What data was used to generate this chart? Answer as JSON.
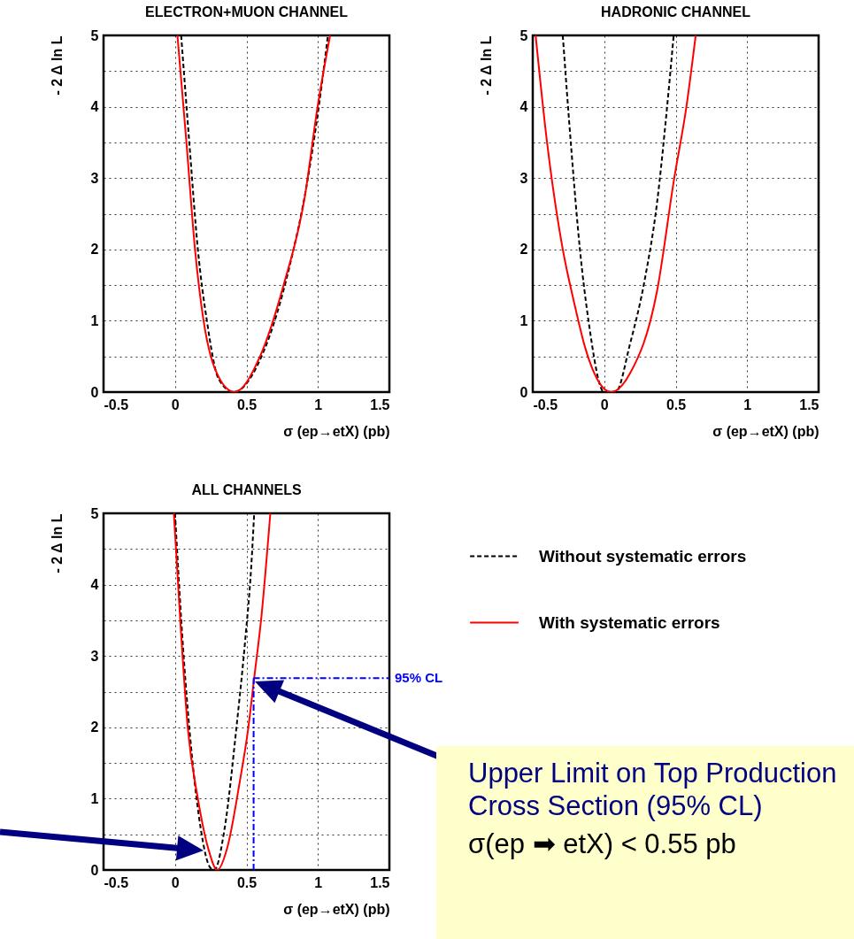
{
  "chart_data": [
    {
      "type": "line",
      "title": "ELECTRON+MUON CHANNEL",
      "xlabel": "σ (ep→etX)  (pb)",
      "ylabel": "- 2 Δ ln L",
      "xlim": [
        -0.5,
        1.5
      ],
      "ylim": [
        0,
        5
      ],
      "xticks": [
        -0.5,
        0,
        0.5,
        1,
        1.5
      ],
      "yticks": [
        0,
        {
          "value": 0.5,
          "label": null
        },
        1,
        {
          "value": 1.5,
          "label": null
        },
        2,
        {
          "value": 2.5,
          "label": null
        },
        3,
        {
          "value": 3.5,
          "label": null
        },
        4,
        {
          "value": 4.5,
          "label": null
        },
        5
      ],
      "grid": true,
      "series": [
        {
          "color": "#000000",
          "line_style": "dashed",
          "x": [
            0.043,
            0.1,
            0.16,
            0.223,
            0.306,
            0.41,
            0.616,
            0.8,
            0.93,
            1.008,
            1.07
          ],
          "values": [
            5,
            3.5,
            2,
            1,
            0.18,
            0,
            0.55,
            1.75,
            3,
            4.03,
            5
          ]
        },
        {
          "color": "#ff0000",
          "line_style": "solid",
          "x": [
            0.017,
            0.08,
            0.14,
            0.2,
            0.285,
            0.415,
            0.595,
            0.76,
            0.905,
            1.0,
            1.085
          ],
          "values": [
            5,
            3.5,
            2,
            1,
            0.3,
            0,
            0.5,
            1.5,
            2.7,
            4.03,
            5
          ]
        }
      ]
    },
    {
      "type": "line",
      "title": "HADRONIC CHANNEL",
      "xlabel": "σ (ep→etX)  (pb)",
      "ylabel": "- 2 Δ ln L",
      "xlim": [
        -0.5,
        1.5
      ],
      "ylim": [
        0,
        5
      ],
      "xticks": [
        -0.5,
        0,
        0.5,
        1,
        1.5
      ],
      "yticks": [
        0,
        {
          "value": 0.5,
          "label": null
        },
        1,
        {
          "value": 1.5,
          "label": null
        },
        2,
        {
          "value": 2.5,
          "label": null
        },
        3,
        {
          "value": 3.5,
          "label": null
        },
        4,
        {
          "value": 4.5,
          "label": null
        },
        5
      ],
      "grid": true,
      "series": [
        {
          "color": "#000000",
          "line_style": "dashed",
          "x": [
            -0.29,
            -0.23,
            -0.17,
            -0.11,
            0,
            0.08,
            0.18,
            0.285,
            0.37,
            0.44,
            0.486
          ],
          "values": [
            5,
            3.4,
            2,
            1,
            0,
            0,
            0.67,
            1.59,
            2.66,
            4,
            5
          ]
        },
        {
          "color": "#ff0000",
          "line_style": "solid",
          "x": [
            -0.48,
            -0.4,
            -0.29,
            -0.21,
            -0.13,
            0.048,
            0.18,
            0.37,
            0.49,
            0.575,
            0.64
          ],
          "values": [
            5,
            3.5,
            2,
            1.25,
            0.6,
            0,
            0.26,
            1.42,
            3,
            4,
            5
          ]
        }
      ]
    },
    {
      "type": "line",
      "title": "ALL CHANNELS",
      "xlabel": "σ (ep→etX)  (pb)",
      "ylabel": "- 2 Δ ln L",
      "xlim": [
        -0.5,
        1.5
      ],
      "ylim": [
        0,
        5
      ],
      "xticks": [
        -0.5,
        0,
        0.5,
        1,
        1.5
      ],
      "yticks": [
        0,
        {
          "value": 0.5,
          "label": null
        },
        1,
        {
          "value": 1.5,
          "label": null
        },
        2,
        {
          "value": 2.5,
          "label": null
        },
        3,
        {
          "value": 3.5,
          "label": null
        },
        4,
        {
          "value": 4.5,
          "label": null
        },
        5
      ],
      "grid": true,
      "legend": "right",
      "series": [
        {
          "name": "Without systematic errors",
          "color": "#000000",
          "line_style": "dashed",
          "x": [
            0,
            0.058,
            0.12,
            0.18,
            0.244,
            0.275,
            0.347,
            0.43,
            0.492,
            0.533,
            0.554
          ],
          "values": [
            5,
            3.07,
            1.57,
            0.58,
            0.04,
            0,
            0.58,
            2,
            3.24,
            4.24,
            5
          ]
        },
        {
          "name": "With systematic errors",
          "color": "#ff0000",
          "line_style": "solid",
          "x": [
            -0.008,
            0.037,
            0.089,
            0.16,
            0.234,
            0.295,
            0.368,
            0.45,
            0.512,
            0.554,
            0.605,
            0.667
          ],
          "values": [
            5,
            3.49,
            2,
            1,
            0.29,
            0,
            0.33,
            1.2,
            1.98,
            2.69,
            3.56,
            5
          ]
        }
      ],
      "ref_lines": [
        {
          "axis": "y",
          "value": 2.69,
          "label": "95% CL",
          "color": "#0000ff",
          "line_style": "dashdot"
        },
        {
          "axis": "x",
          "value": 0.55,
          "color": "#0000ff",
          "line_style": "dashdot"
        }
      ],
      "annotations": [
        "Upper Limit on Top Production Cross Section (95% CL)",
        "σ(ep ➡ etX) < 0.55 pb"
      ]
    }
  ]
}
